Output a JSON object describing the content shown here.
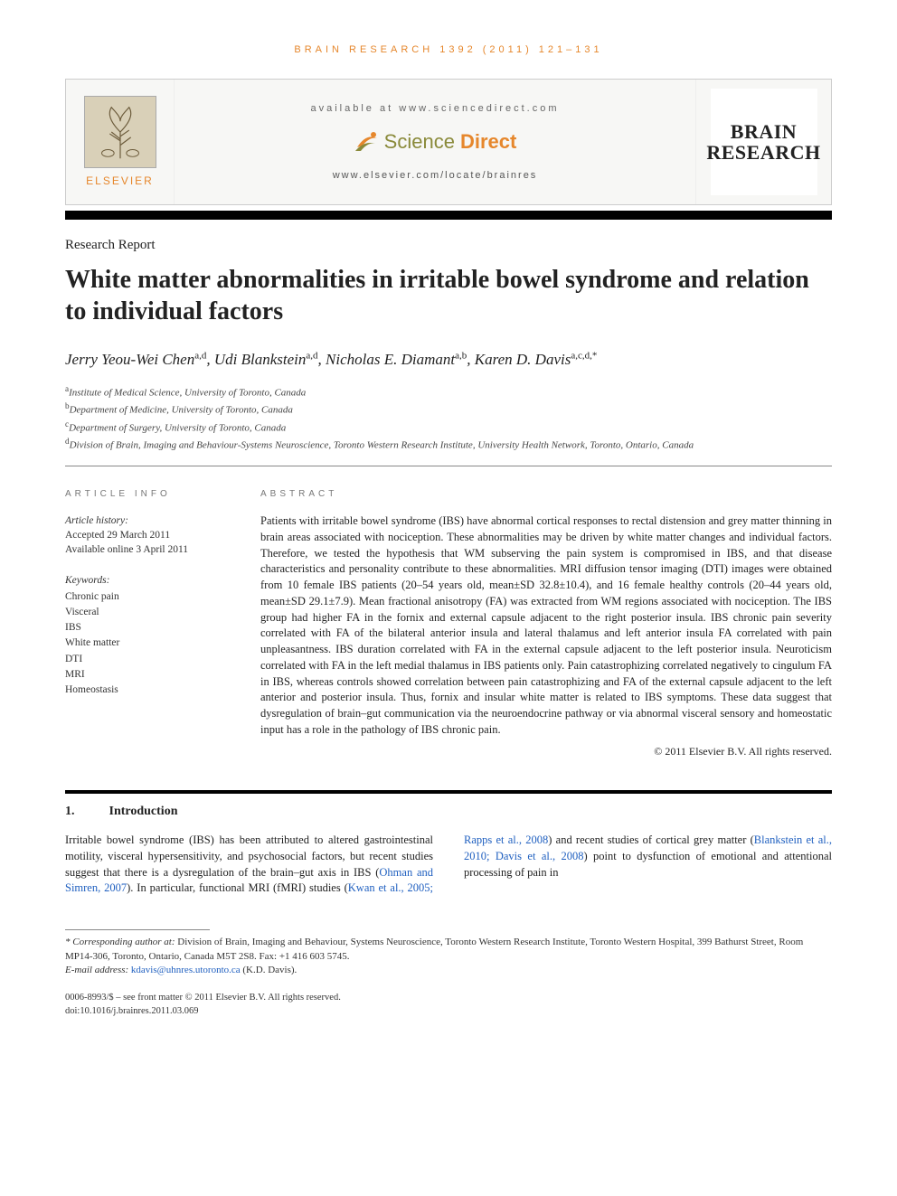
{
  "citation": "BRAIN RESEARCH 1392 (2011) 121–131",
  "masthead": {
    "publisher": "ELSEVIER",
    "available_at": "available at www.sciencedirect.com",
    "sd_logo_a": "Science",
    "sd_logo_b": "Direct",
    "journal_url": "www.elsevier.com/locate/brainres",
    "journal_cover_line1": "BRAIN",
    "journal_cover_line2": "RESEARCH"
  },
  "article_type": "Research Report",
  "title": "White matter abnormalities in irritable bowel syndrome and relation to individual factors",
  "authors_html": "Jerry Yeou-Wei Chen<sup>a,d</sup>, Udi Blankstein<sup>a,d</sup>, Nicholas E. Diamant<sup>a,b</sup>, Karen D. Davis<sup>a,c,d,*</sup>",
  "affiliations": [
    {
      "sup": "a",
      "text": "Institute of Medical Science, University of Toronto, Canada"
    },
    {
      "sup": "b",
      "text": "Department of Medicine, University of Toronto, Canada"
    },
    {
      "sup": "c",
      "text": "Department of Surgery, University of Toronto, Canada"
    },
    {
      "sup": "d",
      "text": "Division of Brain, Imaging and Behaviour-Systems Neuroscience, Toronto Western Research Institute, University Health Network, Toronto, Ontario, Canada"
    }
  ],
  "section_labels": {
    "info": "ARTICLE INFO",
    "abstract": "ABSTRACT"
  },
  "history": {
    "label": "Article history:",
    "accepted": "Accepted 29 March 2011",
    "online": "Available online 3 April 2011"
  },
  "keywords_label": "Keywords:",
  "keywords": [
    "Chronic pain",
    "Visceral",
    "IBS",
    "White matter",
    "DTI",
    "MRI",
    "Homeostasis"
  ],
  "abstract": "Patients with irritable bowel syndrome (IBS) have abnormal cortical responses to rectal distension and grey matter thinning in brain areas associated with nociception. These abnormalities may be driven by white matter changes and individual factors. Therefore, we tested the hypothesis that WM subserving the pain system is compromised in IBS, and that disease characteristics and personality contribute to these abnormalities. MRI diffusion tensor imaging (DTI) images were obtained from 10 female IBS patients (20–54 years old, mean±SD 32.8±10.4), and 16 female healthy controls (20–44 years old, mean±SD 29.1±7.9). Mean fractional anisotropy (FA) was extracted from WM regions associated with nociception. The IBS group had higher FA in the fornix and external capsule adjacent to the right posterior insula. IBS chronic pain severity correlated with FA of the bilateral anterior insula and lateral thalamus and left anterior insula FA correlated with pain unpleasantness. IBS duration correlated with FA in the external capsule adjacent to the left posterior insula. Neuroticism correlated with FA in the left medial thalamus in IBS patients only. Pain catastrophizing correlated negatively to cingulum FA in IBS, whereas controls showed correlation between pain catastrophizing and FA of the external capsule adjacent to the left anterior and posterior insula. Thus, fornix and insular white matter is related to IBS symptoms. These data suggest that dysregulation of brain–gut communication via the neuroendocrine pathway or via abnormal visceral sensory and homeostatic input has a role in the pathology of IBS chronic pain.",
  "copyright": "© 2011 Elsevier B.V. All rights reserved.",
  "intro": {
    "num": "1.",
    "title": "Introduction"
  },
  "body_para1": "Irritable bowel syndrome (IBS) has been attributed to altered gastrointestinal motility, visceral hypersensitivity, and psychosocial factors, but recent studies suggest that there is a",
  "body_para2_a": "dysregulation of the brain–gut axis in IBS (",
  "body_ref1": "Ohman and Simren, 2007",
  "body_para2_b": "). In particular, functional MRI (fMRI) studies (",
  "body_ref2": "Kwan et al., 2005; Rapps et al., 2008",
  "body_para2_c": ") and recent studies of cortical grey matter (",
  "body_ref3": "Blankstein et al., 2010; Davis et al., 2008",
  "body_para2_d": ") point to dysfunction of emotional and attentional processing of pain in",
  "footnote_corresponding_label": "* Corresponding author at:",
  "footnote_corresponding": " Division of Brain, Imaging and Behaviour, Systems Neuroscience, Toronto Western Research Institute, Toronto Western Hospital, 399 Bathurst Street, Room MP14-306, Toronto, Ontario, Canada M5T 2S8. Fax: +1 416 603 5745.",
  "footnote_email_label": "E-mail address: ",
  "footnote_email": "kdavis@uhnres.utoronto.ca",
  "footnote_email_who": " (K.D. Davis).",
  "footer_line1": "0006-8993/$ – see front matter © 2011 Elsevier B.V. All rights reserved.",
  "footer_line2": "doi:10.1016/j.brainres.2011.03.069",
  "colors": {
    "accent_orange": "#e6872c",
    "link_blue": "#2060c0",
    "olive": "#8a8a3a"
  }
}
